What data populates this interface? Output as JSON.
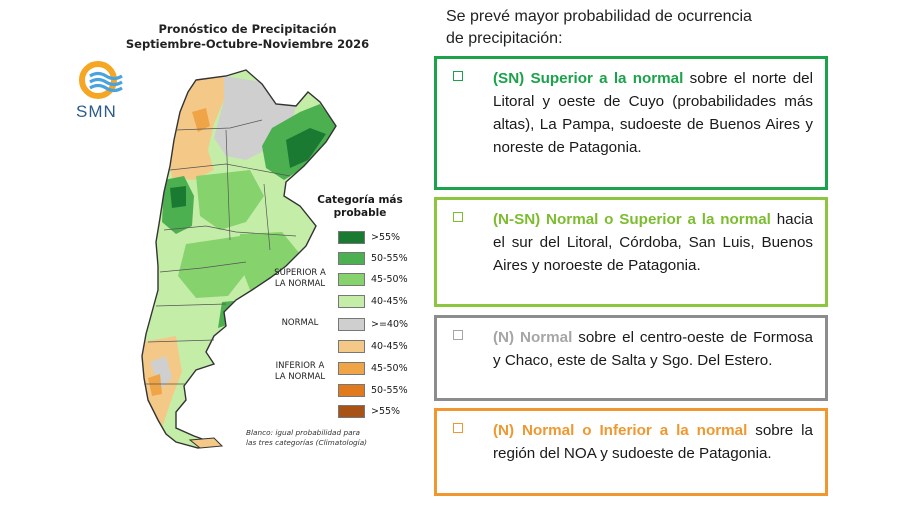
{
  "map": {
    "title_line1": "Pronóstico de Precipitación",
    "title_line2": "Septiembre-Octubre-Noviembre 2026",
    "logo_text": "SMN"
  },
  "legend": {
    "title_line1": "Categoría más",
    "title_line2": "probable",
    "groups": {
      "superior_line1": "SUPERIOR A",
      "superior_line2": "LA NORMAL",
      "normal": "NORMAL",
      "inferior_line1": "INFERIOR A",
      "inferior_line2": "LA NORMAL"
    },
    "items": [
      {
        "label": ">55%",
        "color": "#1a7a32"
      },
      {
        "label": "50-55%",
        "color": "#4cb050"
      },
      {
        "label": "45-50%",
        "color": "#86d36e"
      },
      {
        "label": "40-45%",
        "color": "#c4eea8"
      },
      {
        "label": ">=40%",
        "color": "#cfcfcf"
      },
      {
        "label": "40-45%",
        "color": "#f4c987"
      },
      {
        "label": "45-50%",
        "color": "#f0a448"
      },
      {
        "label": "50-55%",
        "color": "#df7a1e"
      },
      {
        "label": ">55%",
        "color": "#a95215"
      }
    ],
    "note_line1": "Blanco: igual probabilidad para",
    "note_line2": "las tres categorías (Climatología)"
  },
  "intro_line1": "Se prevé mayor probabilidad de ocurrencia",
  "intro_line2": "de precipitación:",
  "boxes": [
    {
      "highlight": "(SN) Superior a la normal",
      "text": " sobre el norte del Litoral y oeste de Cuyo (probabilidades más altas), La Pampa, sudoeste de Buenos Aires y noreste de Patagonia.",
      "color": "#1aa34a",
      "text_color": "#1aa34a"
    },
    {
      "highlight": "(N-SN) Normal o Superior a la normal",
      "text": " hacia el sur del Litoral, Córdoba, San Luis, Buenos Aires y noroeste de Patagonia.",
      "color": "#8cc63f",
      "text_color": "#7cbd2f"
    },
    {
      "highlight": "(N) Normal",
      "text": " sobre el centro-oeste de Formosa y Chaco, este de Salta y Sgo. Del Estero.",
      "color": "#8c8c8c",
      "text_color": "#a6a6a6"
    },
    {
      "highlight": "(N) Normal o Inferior a la normal",
      "text": " sobre la región del NOA y sudoeste de Patagonia.",
      "color": "#f0982f",
      "text_color": "#f0982f"
    }
  ]
}
